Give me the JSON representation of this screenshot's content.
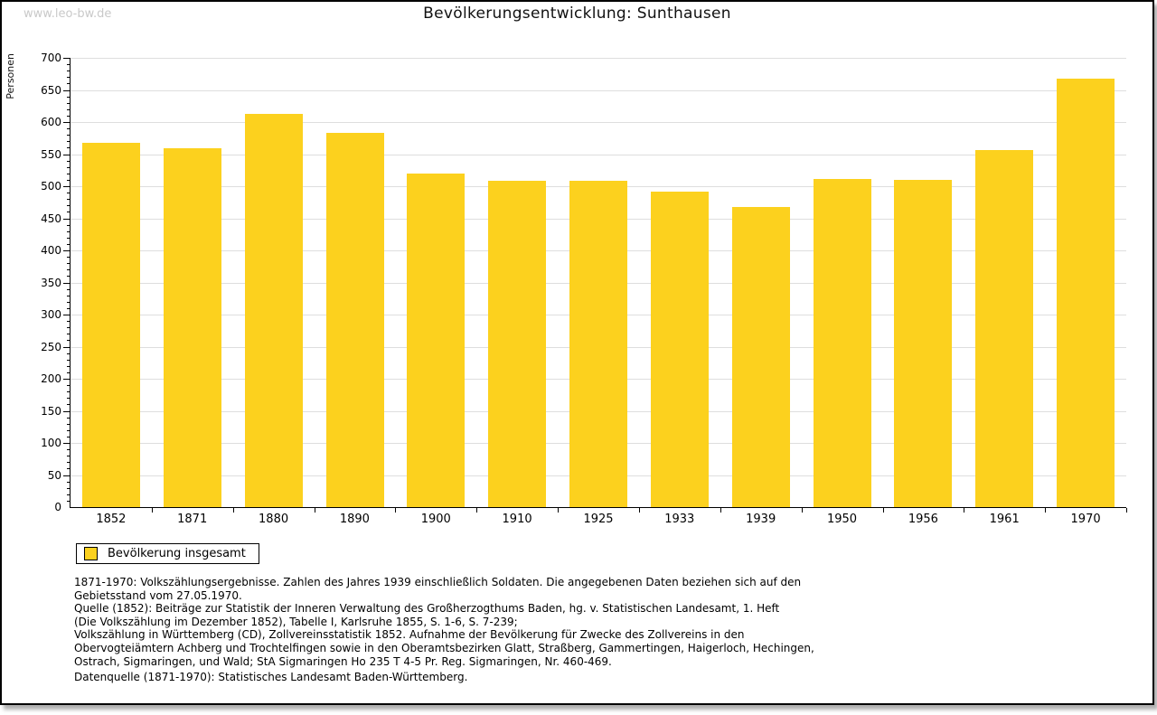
{
  "watermark": "www.leo-bw.de",
  "title": "Bevölkerungsentwicklung: Sunthausen",
  "chart_data": {
    "type": "bar",
    "title": "Bevölkerungsentwicklung: Sunthausen",
    "xlabel": "",
    "ylabel": "Personen",
    "categories": [
      "1852",
      "1871",
      "1880",
      "1890",
      "1900",
      "1910",
      "1925",
      "1933",
      "1939",
      "1950",
      "1956",
      "1961",
      "1970"
    ],
    "values": [
      567,
      559,
      613,
      583,
      520,
      508,
      509,
      491,
      468,
      512,
      510,
      557,
      668
    ],
    "ylim": [
      0,
      700
    ],
    "ytick_step": 50,
    "ytick_minor_step": 10,
    "grid": true,
    "legend_position": "bottom-left",
    "series_name": "Bevölkerung insgesamt"
  },
  "legend": {
    "label": "Bevölkerung insgesamt",
    "swatch_color": "#fcd11e"
  },
  "colors": {
    "bar": "#fcd11e",
    "grid": "#dedede",
    "axis": "#000000",
    "watermark": "#c9c9c9"
  },
  "footer": {
    "lines": [
      "1871-1970: Volkszählungsergebnisse. Zahlen des Jahres 1939 einschließlich Soldaten. Die angegebenen Daten beziehen sich auf den",
      "Gebietsstand vom 27.05.1970.",
      "Quelle (1852): Beiträge zur Statistik der Inneren Verwaltung des Großherzogthums Baden, hg. v. Statistischen Landesamt, 1. Heft",
      "(Die Volkszählung im Dezember 1852), Tabelle I, Karlsruhe 1855, S. 1-6, S. 7-239;",
      "Volkszählung in Württemberg (CD), Zollvereinsstatistik 1852. Aufnahme der Bevölkerung für Zwecke des Zollvereins in den",
      "Obervogteiämtern Achberg und Trochtelfingen sowie in den Oberamtsbezirken Glatt, Straßberg, Gammertingen, Haigerloch, Hechingen,",
      "Ostrach, Sigmaringen, und Wald; StA Sigmaringen Ho 235 T 4-5 Pr. Reg. Sigmaringen, Nr. 460-469."
    ],
    "datasource": "Datenquelle (1871-1970): Statistisches Landesamt Baden-Württemberg."
  }
}
